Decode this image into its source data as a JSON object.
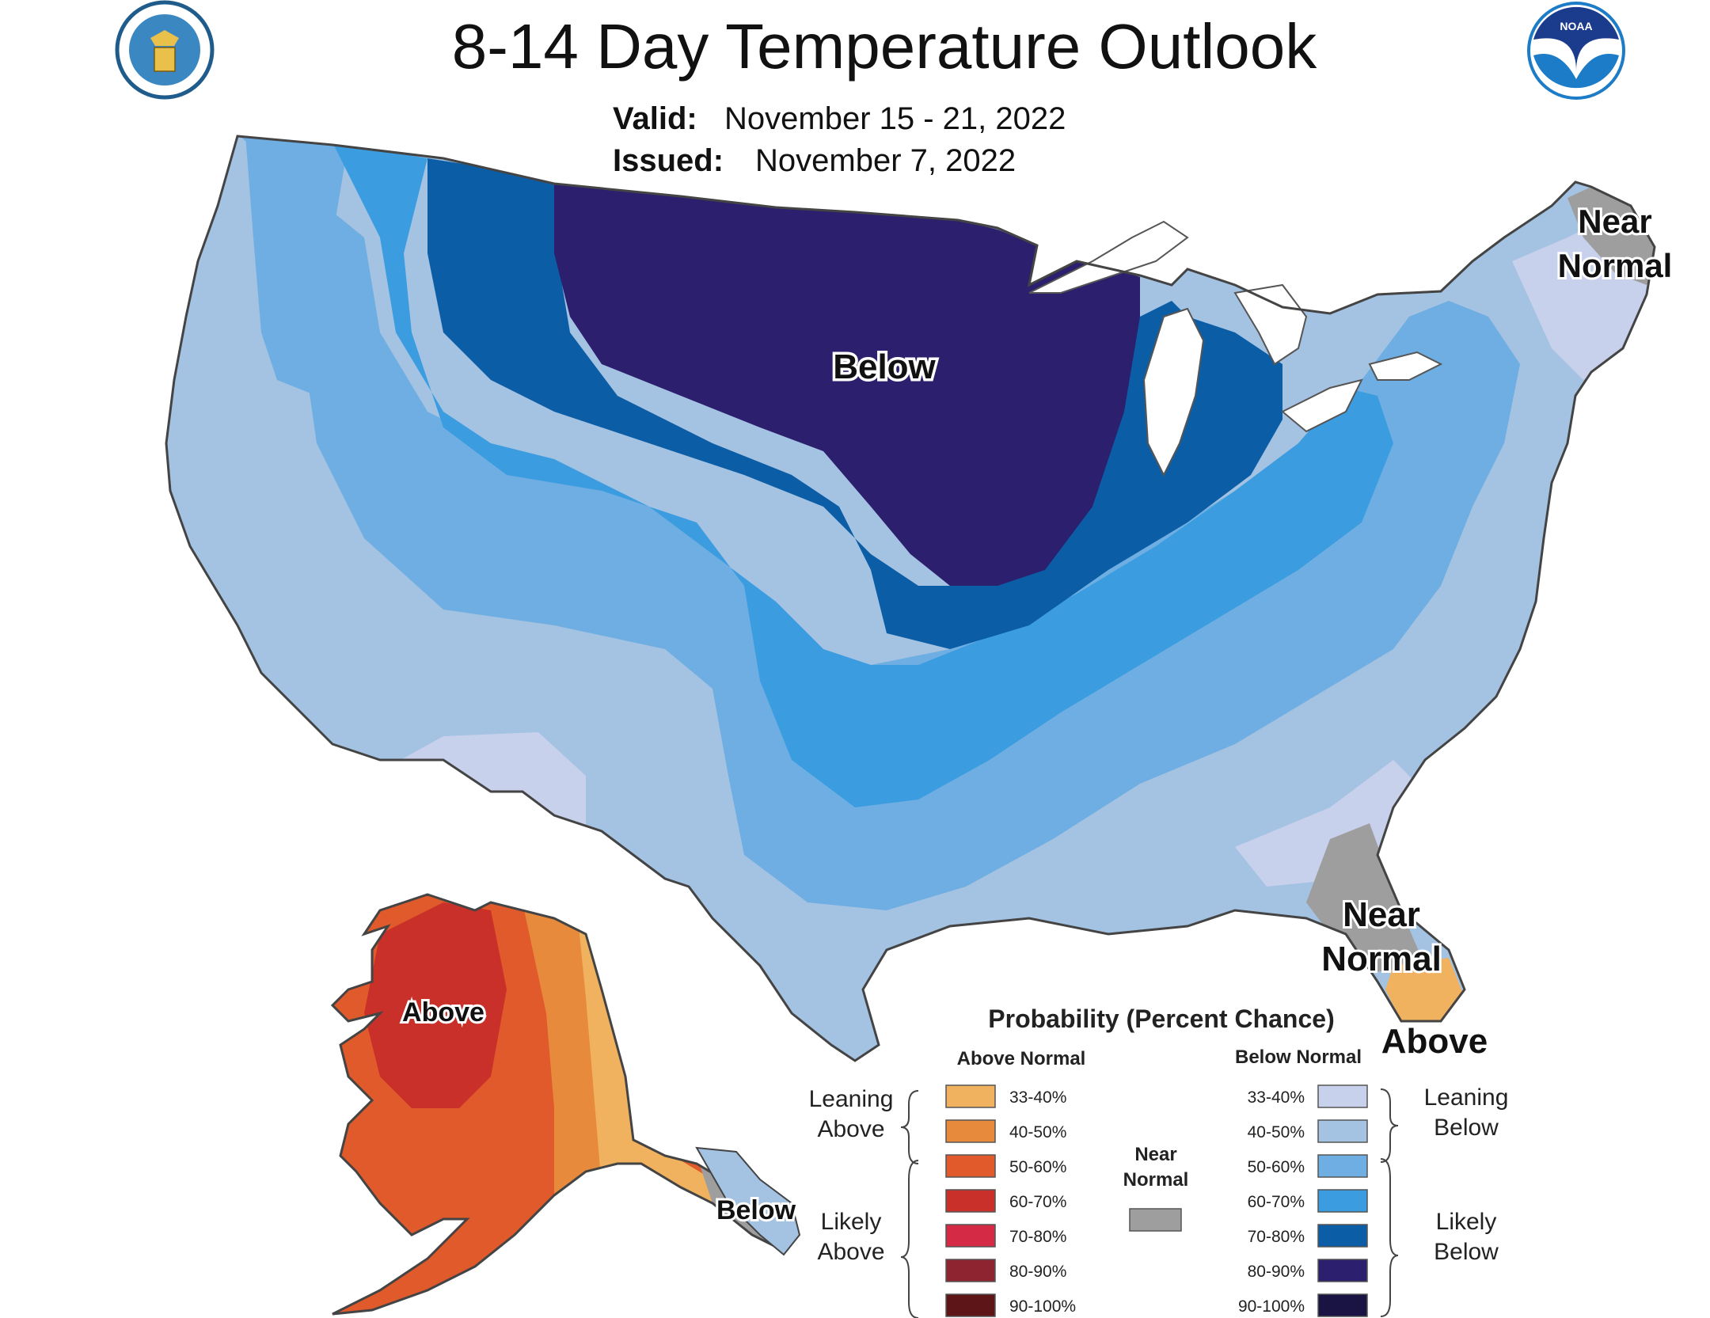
{
  "header": {
    "title": "8-14 Day Temperature Outlook",
    "valid_label": "Valid:",
    "valid_value": "November 15 - 21, 2022",
    "issued_label": "Issued:",
    "issued_value": "November 7, 2022"
  },
  "map_labels": {
    "below_midwest": "Below",
    "near_normal_ne_line1": "Near",
    "near_normal_ne_line2": "Normal",
    "near_normal_fl_line1": "Near",
    "near_normal_fl_line2": "Normal",
    "above_fl": "Above",
    "above_ak": "Above",
    "below_ak": "Below"
  },
  "legend": {
    "title": "Probability (Percent Chance)",
    "above_header": "Above Normal",
    "below_header": "Below Normal",
    "leaning_above_1": "Leaning",
    "leaning_above_2": "Above",
    "likely_above_1": "Likely",
    "likely_above_2": "Above",
    "leaning_below_1": "Leaning",
    "leaning_below_2": "Below",
    "likely_below_1": "Likely",
    "likely_below_2": "Below",
    "near_normal_1": "Near",
    "near_normal_2": "Normal",
    "near_normal_color": "#9e9e9e",
    "above": [
      {
        "range": "33-40%",
        "color": "#f0b25e"
      },
      {
        "range": "40-50%",
        "color": "#e88a3c"
      },
      {
        "range": "50-60%",
        "color": "#e05a2b"
      },
      {
        "range": "60-70%",
        "color": "#c9302a"
      },
      {
        "range": "70-80%",
        "color": "#d42a45"
      },
      {
        "range": "80-90%",
        "color": "#8e2430"
      },
      {
        "range": "90-100%",
        "color": "#5e1518"
      }
    ],
    "below": [
      {
        "range": "33-40%",
        "color": "#c8d1ec"
      },
      {
        "range": "40-50%",
        "color": "#a4c2e2"
      },
      {
        "range": "50-60%",
        "color": "#6faee2"
      },
      {
        "range": "60-70%",
        "color": "#3b9de0"
      },
      {
        "range": "70-80%",
        "color": "#0b5ea6"
      },
      {
        "range": "80-90%",
        "color": "#2c1f6e"
      },
      {
        "range": "90-100%",
        "color": "#1a1445"
      }
    ]
  }
}
